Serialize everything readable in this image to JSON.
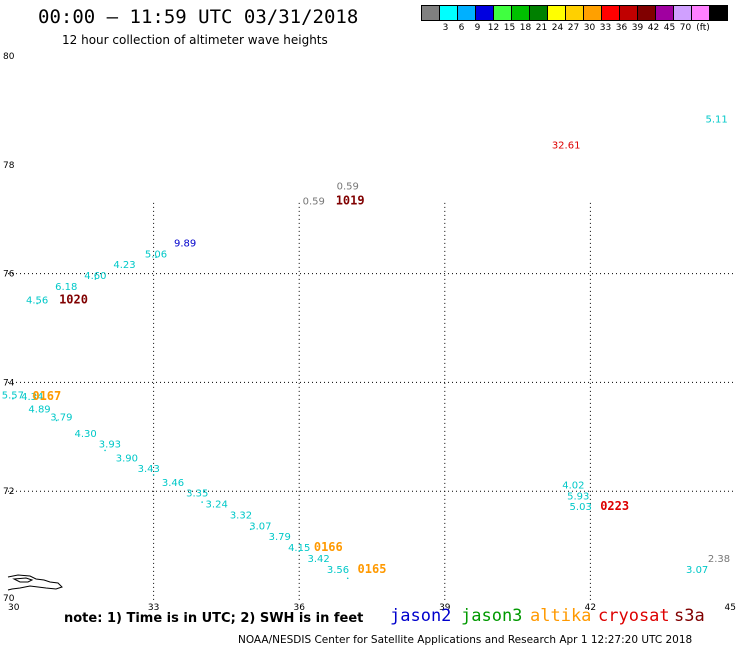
{
  "header": {
    "title": "00:00 – 11:59 UTC 03/31/2018",
    "subtitle": "12 hour collection of altimeter wave heights"
  },
  "scale": {
    "labels": [
      "3",
      "6",
      "9",
      "12",
      "15",
      "18",
      "21",
      "24",
      "27",
      "30",
      "33",
      "36",
      "39",
      "42",
      "45",
      "70"
    ],
    "unit": "(ft)",
    "colors": [
      "#808080",
      "#00ffff",
      "#00b0ff",
      "#0000e0",
      "#40ff40",
      "#00c000",
      "#008000",
      "#ffff00",
      "#ffd000",
      "#ffa000",
      "#ff0000",
      "#c00000",
      "#800000",
      "#a000a0",
      "#d0a0ff",
      "#ff80ff",
      "#000000"
    ]
  },
  "map": {
    "lon_range": [
      30,
      45
    ],
    "lat_range": [
      70,
      80
    ],
    "lon_ticks": [
      "30",
      "33",
      "36",
      "39",
      "42",
      "45"
    ],
    "lat_ticks": [
      "70",
      "72",
      "74",
      "76",
      "78",
      "80"
    ],
    "grid": "dotted every 3° lon / 2° lat",
    "colors": {
      "jason2": "#0000cc",
      "jason3": "#009900",
      "altika": "#ff9900",
      "cryosat": "#dd0000",
      "s3a": "#800000",
      "generic": "#00c8c8",
      "gray": "#777777"
    },
    "observations": [
      {
        "lon": 44.6,
        "lat": 78.78,
        "text": "5.11",
        "sat": "generic"
      },
      {
        "lon": 41.5,
        "lat": 78.3,
        "text": "32.61",
        "sat": "cryosat"
      },
      {
        "lon": 37.0,
        "lat": 77.55,
        "text": "0.59",
        "sat": "gray"
      },
      {
        "lon": 36.3,
        "lat": 77.27,
        "text": "0.59",
        "sat": "gray"
      },
      {
        "lon": 37.05,
        "lat": 77.27,
        "text": "1019",
        "sat": "s3a"
      },
      {
        "lon": 33.65,
        "lat": 76.5,
        "text": "9.89",
        "sat": "jason2"
      },
      {
        "lon": 33.05,
        "lat": 76.3,
        "text": "5.06",
        "sat": "generic"
      },
      {
        "lon": 32.4,
        "lat": 76.1,
        "text": "4.23",
        "sat": "generic"
      },
      {
        "lon": 31.8,
        "lat": 75.9,
        "text": "4.60",
        "sat": "generic"
      },
      {
        "lon": 31.2,
        "lat": 75.7,
        "text": "6.18",
        "sat": "generic"
      },
      {
        "lon": 30.6,
        "lat": 75.45,
        "text": "4.56",
        "sat": "generic"
      },
      {
        "lon": 31.35,
        "lat": 75.45,
        "text": "1020",
        "sat": "s3a"
      },
      {
        "lon": 30.1,
        "lat": 73.7,
        "text": "5.57",
        "sat": "generic"
      },
      {
        "lon": 30.5,
        "lat": 73.68,
        "text": "4.34",
        "sat": "generic"
      },
      {
        "lon": 30.8,
        "lat": 73.68,
        "text": "0167",
        "sat": "altika"
      },
      {
        "lon": 30.65,
        "lat": 73.45,
        "text": "4.89",
        "sat": "generic"
      },
      {
        "lon": 31.1,
        "lat": 73.3,
        "text": "3.79",
        "sat": "generic"
      },
      {
        "lon": 31.6,
        "lat": 73.0,
        "text": "4.30",
        "sat": "generic"
      },
      {
        "lon": 32.1,
        "lat": 72.8,
        "text": "3.93",
        "sat": "generic"
      },
      {
        "lon": 32.45,
        "lat": 72.55,
        "text": "3.90",
        "sat": "generic"
      },
      {
        "lon": 32.9,
        "lat": 72.35,
        "text": "3.43",
        "sat": "generic"
      },
      {
        "lon": 33.4,
        "lat": 72.1,
        "text": "3.46",
        "sat": "generic"
      },
      {
        "lon": 33.9,
        "lat": 71.9,
        "text": "3.35",
        "sat": "generic"
      },
      {
        "lon": 34.3,
        "lat": 71.7,
        "text": "3.24",
        "sat": "generic"
      },
      {
        "lon": 34.8,
        "lat": 71.5,
        "text": "3.32",
        "sat": "generic"
      },
      {
        "lon": 35.2,
        "lat": 71.3,
        "text": "3.07",
        "sat": "generic"
      },
      {
        "lon": 35.6,
        "lat": 71.1,
        "text": "3.79",
        "sat": "generic"
      },
      {
        "lon": 36.0,
        "lat": 70.9,
        "text": "4.15",
        "sat": "generic"
      },
      {
        "lon": 36.6,
        "lat": 70.9,
        "text": "0166",
        "sat": "altika"
      },
      {
        "lon": 36.4,
        "lat": 70.7,
        "text": "3.42",
        "sat": "generic"
      },
      {
        "lon": 36.8,
        "lat": 70.5,
        "text": "3.56",
        "sat": "generic"
      },
      {
        "lon": 37.5,
        "lat": 70.5,
        "text": "0165",
        "sat": "altika"
      },
      {
        "lon": 41.65,
        "lat": 72.05,
        "text": "4.02",
        "sat": "generic"
      },
      {
        "lon": 41.75,
        "lat": 71.85,
        "text": "5.93",
        "sat": "generic"
      },
      {
        "lon": 41.8,
        "lat": 71.65,
        "text": "5.03",
        "sat": "generic"
      },
      {
        "lon": 42.5,
        "lat": 71.65,
        "text": "0223",
        "sat": "cryosat"
      },
      {
        "lon": 44.2,
        "lat": 70.5,
        "text": "3.07",
        "sat": "generic"
      },
      {
        "lon": 44.65,
        "lat": 70.7,
        "text": "2.38",
        "sat": "gray"
      }
    ],
    "satellite_tracks": [
      {
        "sat": "generic",
        "points": [
          [
            30.1,
            73.7
          ],
          [
            31.0,
            73.3
          ],
          [
            32.0,
            72.75
          ],
          [
            33.0,
            72.3
          ],
          [
            34.0,
            71.8
          ],
          [
            35.0,
            71.3
          ],
          [
            36.0,
            70.9
          ],
          [
            37.0,
            70.4
          ]
        ]
      },
      {
        "sat": "generic",
        "points": [
          [
            30.6,
            75.45
          ],
          [
            31.8,
            75.9
          ],
          [
            33.05,
            76.3
          ]
        ]
      }
    ]
  },
  "note": {
    "text": "note: 1) Time is in UTC; 2) SWH is in feet"
  },
  "legend": {
    "jason2": "jason2",
    "jason3": "jason3",
    "altika": "altika",
    "cryosat": "cryosat",
    "s3a": "s3a"
  },
  "footer": "NOAA/NESDIS Center for Satellite Applications and Research   Apr  1 12:27:20 UTC 2018"
}
